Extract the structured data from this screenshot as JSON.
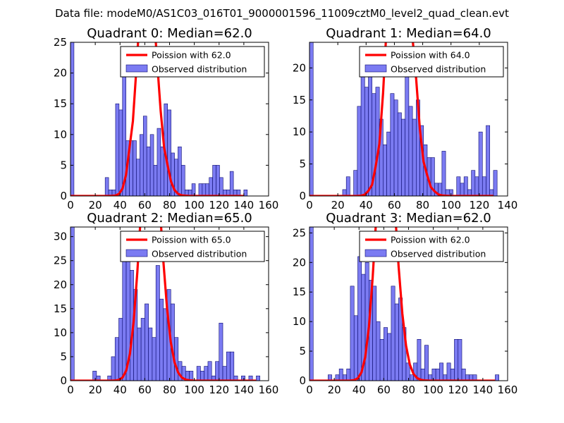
{
  "figure_title": "Data file: modeM0/AS1C03_016T01_9000001596_11009cztM0_level2_quad_clean.evt",
  "colors": {
    "bar_fill": "#7b7bf2",
    "bar_edge": "#0a0a6e",
    "poisson_line": "#ff0000",
    "legend_border": "#000000"
  },
  "chart_data": [
    {
      "type": "bar",
      "title": "Quadrant 0: Median=62.0",
      "median": 62.0,
      "xlim": [
        0,
        160
      ],
      "ylim": [
        0,
        25
      ],
      "xticks": [
        "0",
        "20",
        "40",
        "60",
        "80",
        "100",
        "120",
        "140",
        "160"
      ],
      "yticks": [
        "0",
        "5",
        "10",
        "15",
        "20",
        "25"
      ],
      "bin_width": 2.8,
      "bins": [
        [
          0,
          25
        ],
        [
          2.8,
          0
        ],
        [
          5.6,
          0
        ],
        [
          8.4,
          0
        ],
        [
          11.2,
          0
        ],
        [
          14,
          0
        ],
        [
          16.8,
          0
        ],
        [
          19.6,
          0
        ],
        [
          22.4,
          0
        ],
        [
          25.2,
          0
        ],
        [
          28,
          3
        ],
        [
          30.8,
          1
        ],
        [
          33.6,
          1
        ],
        [
          36.4,
          15
        ],
        [
          39.2,
          14
        ],
        [
          42,
          21
        ],
        [
          44.8,
          9
        ],
        [
          47.6,
          9
        ],
        [
          50.4,
          9
        ],
        [
          53.2,
          6
        ],
        [
          56,
          10
        ],
        [
          58.8,
          13
        ],
        [
          61.6,
          8
        ],
        [
          64.4,
          10
        ],
        [
          67.2,
          5
        ],
        [
          70,
          11
        ],
        [
          72.8,
          8
        ],
        [
          75.6,
          15
        ],
        [
          78.4,
          14
        ],
        [
          81.2,
          7
        ],
        [
          84,
          6
        ],
        [
          86.8,
          8
        ],
        [
          89.6,
          5
        ],
        [
          92.4,
          1
        ],
        [
          95.2,
          1
        ],
        [
          98,
          2
        ],
        [
          100.8,
          0
        ],
        [
          103.6,
          2
        ],
        [
          106.4,
          2
        ],
        [
          109.2,
          2
        ],
        [
          112,
          3
        ],
        [
          114.8,
          5
        ],
        [
          117.6,
          5
        ],
        [
          120.4,
          3
        ],
        [
          123.2,
          1
        ],
        [
          126,
          1
        ],
        [
          128.8,
          4
        ],
        [
          131.6,
          1
        ],
        [
          134.4,
          1
        ],
        [
          137.2,
          0
        ],
        [
          140,
          1
        ]
      ],
      "legend": [
        {
          "kind": "line",
          "label": "Poission with 62.0"
        },
        {
          "kind": "patch",
          "label": "Observed distribution"
        }
      ]
    },
    {
      "type": "bar",
      "title": "Quadrant 1: Median=64.0",
      "median": 64.0,
      "xlim": [
        0,
        140
      ],
      "ylim": [
        0,
        24
      ],
      "xticks": [
        "0",
        "20",
        "40",
        "60",
        "80",
        "100",
        "120",
        "140"
      ],
      "yticks": [
        "0",
        "5",
        "10",
        "15",
        "20"
      ],
      "bin_width": 2.6,
      "bins": [
        [
          0,
          24
        ],
        [
          2.6,
          0
        ],
        [
          5.2,
          0
        ],
        [
          7.8,
          0
        ],
        [
          10.4,
          0
        ],
        [
          13,
          0
        ],
        [
          15.6,
          0
        ],
        [
          18.2,
          0
        ],
        [
          20.8,
          0
        ],
        [
          23.4,
          1
        ],
        [
          26,
          3
        ],
        [
          28.6,
          0
        ],
        [
          31.2,
          4
        ],
        [
          33.8,
          14
        ],
        [
          36.4,
          19
        ],
        [
          39,
          17
        ],
        [
          41.6,
          21
        ],
        [
          44.2,
          16
        ],
        [
          46.8,
          17
        ],
        [
          49.4,
          12
        ],
        [
          52,
          8
        ],
        [
          54.6,
          10
        ],
        [
          57.2,
          16
        ],
        [
          59.8,
          15
        ],
        [
          62.4,
          13
        ],
        [
          65,
          12
        ],
        [
          67.6,
          21
        ],
        [
          70.2,
          14
        ],
        [
          72.8,
          12
        ],
        [
          75.4,
          15
        ],
        [
          78,
          11
        ],
        [
          80.6,
          8
        ],
        [
          83.2,
          6
        ],
        [
          85.8,
          6
        ],
        [
          88.4,
          2
        ],
        [
          91,
          2
        ],
        [
          93.6,
          7
        ],
        [
          96.2,
          1
        ],
        [
          98.8,
          1
        ],
        [
          101.4,
          0
        ],
        [
          104,
          3
        ],
        [
          106.6,
          2
        ],
        [
          109.2,
          3
        ],
        [
          111.8,
          1
        ],
        [
          114.4,
          4
        ],
        [
          117,
          3
        ],
        [
          119.6,
          10
        ],
        [
          122.2,
          3
        ],
        [
          124.8,
          11
        ],
        [
          127.4,
          1
        ],
        [
          130,
          4
        ]
      ],
      "legend": [
        {
          "kind": "line",
          "label": "Poission with 64.0"
        },
        {
          "kind": "patch",
          "label": "Observed distribution"
        }
      ]
    },
    {
      "type": "bar",
      "title": "Quadrant 2: Median=65.0",
      "median": 65.0,
      "xlim": [
        0,
        160
      ],
      "ylim": [
        0,
        32
      ],
      "xticks": [
        "0",
        "20",
        "40",
        "60",
        "80",
        "100",
        "120",
        "140",
        "160"
      ],
      "yticks": [
        "0",
        "5",
        "10",
        "15",
        "20",
        "25",
        "30"
      ],
      "bin_width": 3,
      "bins": [
        [
          0,
          32
        ],
        [
          3,
          0
        ],
        [
          6,
          0
        ],
        [
          9,
          0
        ],
        [
          12,
          0
        ],
        [
          15,
          0
        ],
        [
          18,
          2
        ],
        [
          21,
          1
        ],
        [
          24,
          0
        ],
        [
          27,
          0
        ],
        [
          30,
          1
        ],
        [
          33,
          5
        ],
        [
          36,
          9
        ],
        [
          39,
          13
        ],
        [
          42,
          26
        ],
        [
          45,
          25
        ],
        [
          48,
          23
        ],
        [
          51,
          19
        ],
        [
          54,
          11
        ],
        [
          57,
          13
        ],
        [
          60,
          16
        ],
        [
          63,
          11
        ],
        [
          66,
          9
        ],
        [
          69,
          24
        ],
        [
          72,
          17
        ],
        [
          75,
          15
        ],
        [
          78,
          19
        ],
        [
          81,
          16
        ],
        [
          84,
          9
        ],
        [
          87,
          4
        ],
        [
          90,
          3
        ],
        [
          93,
          2
        ],
        [
          96,
          2
        ],
        [
          99,
          0
        ],
        [
          102,
          3
        ],
        [
          105,
          2
        ],
        [
          108,
          3
        ],
        [
          111,
          4
        ],
        [
          114,
          1
        ],
        [
          117,
          4
        ],
        [
          120,
          12
        ],
        [
          123,
          3
        ],
        [
          126,
          6
        ],
        [
          129,
          6
        ],
        [
          132,
          1
        ],
        [
          135,
          0
        ],
        [
          138,
          1
        ],
        [
          141,
          0
        ],
        [
          144,
          1
        ],
        [
          147,
          0
        ],
        [
          150,
          1
        ]
      ],
      "legend": [
        {
          "kind": "line",
          "label": "Poission with 65.0"
        },
        {
          "kind": "patch",
          "label": "Observed distribution"
        }
      ]
    },
    {
      "type": "bar",
      "title": "Quadrant 3: Median=62.0",
      "median": 62.0,
      "xlim": [
        0,
        160
      ],
      "ylim": [
        0,
        26
      ],
      "xticks": [
        "0",
        "20",
        "40",
        "60",
        "80",
        "100",
        "120",
        "140",
        "160"
      ],
      "yticks": [
        "0",
        "5",
        "10",
        "15",
        "20",
        "25"
      ],
      "bin_width": 3,
      "bins": [
        [
          0,
          26
        ],
        [
          3,
          0
        ],
        [
          6,
          0
        ],
        [
          9,
          0
        ],
        [
          12,
          0
        ],
        [
          15,
          1
        ],
        [
          18,
          0
        ],
        [
          21,
          1
        ],
        [
          24,
          2
        ],
        [
          27,
          1
        ],
        [
          30,
          2
        ],
        [
          33,
          16
        ],
        [
          36,
          11
        ],
        [
          39,
          21
        ],
        [
          42,
          18
        ],
        [
          45,
          20
        ],
        [
          48,
          17
        ],
        [
          51,
          16
        ],
        [
          54,
          10
        ],
        [
          57,
          7
        ],
        [
          60,
          9
        ],
        [
          63,
          8
        ],
        [
          66,
          16
        ],
        [
          69,
          13
        ],
        [
          72,
          14
        ],
        [
          75,
          9
        ],
        [
          78,
          3
        ],
        [
          81,
          1
        ],
        [
          84,
          3
        ],
        [
          87,
          7
        ],
        [
          90,
          2
        ],
        [
          93,
          6
        ],
        [
          96,
          1
        ],
        [
          99,
          2
        ],
        [
          102,
          2
        ],
        [
          105,
          3
        ],
        [
          108,
          1
        ],
        [
          111,
          3
        ],
        [
          114,
          2
        ],
        [
          117,
          7
        ],
        [
          120,
          7
        ],
        [
          123,
          2
        ],
        [
          126,
          1
        ],
        [
          129,
          1
        ],
        [
          132,
          1
        ],
        [
          135,
          0
        ],
        [
          138,
          0
        ],
        [
          141,
          0
        ],
        [
          144,
          0
        ],
        [
          147,
          0
        ],
        [
          150,
          1
        ]
      ],
      "legend": [
        {
          "kind": "line",
          "label": "Poission with 62.0"
        },
        {
          "kind": "patch",
          "label": "Observed distribution"
        }
      ]
    }
  ]
}
